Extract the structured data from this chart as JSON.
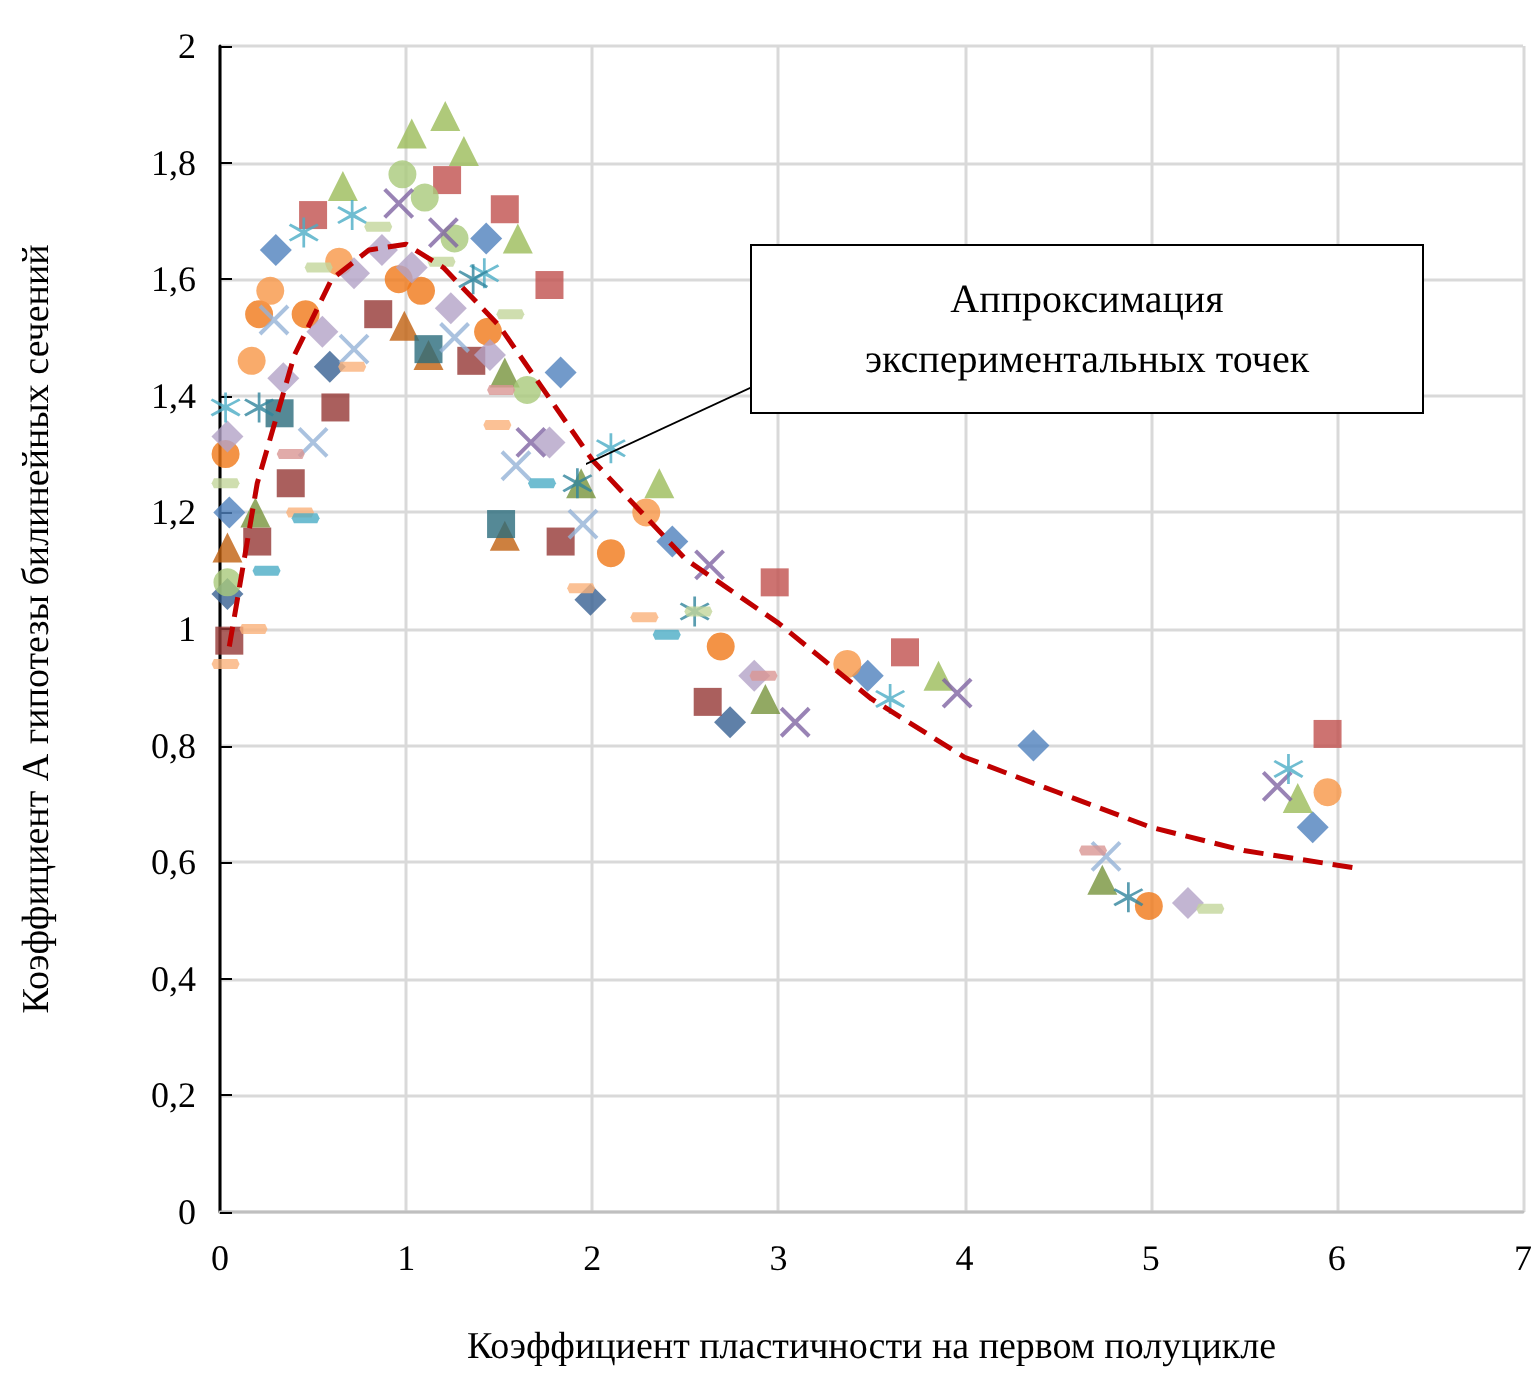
{
  "chart_data": {
    "type": "scatter",
    "xlabel": "Коэффициент пластичности на первом полуцикле",
    "ylabel": "Коэффициент А гипотезы билинейных сечений",
    "xlim": [
      0,
      7
    ],
    "xticks": [
      0,
      1,
      2,
      3,
      4,
      5,
      6,
      7
    ],
    "ylim": [
      0,
      2
    ],
    "yticks": [
      0,
      {
        "value": 0.2,
        "label": "0,2"
      },
      {
        "value": 0.4,
        "label": "0,4"
      },
      {
        "value": 0.6,
        "label": "0,6"
      },
      {
        "value": 0.8,
        "label": "0,8"
      },
      1,
      {
        "value": 1.2,
        "label": "1,2"
      },
      {
        "value": 1.4,
        "label": "1,4"
      },
      {
        "value": 1.6,
        "label": "1,6"
      },
      {
        "value": 1.8,
        "label": "1,8"
      },
      2
    ],
    "grid": true,
    "annotations": [
      "Аппроксимация экспериментальных точек"
    ],
    "series": [
      {
        "color": "#4f81bd",
        "marker": "diamond",
        "x": [
          0.05,
          0.3,
          1.43,
          1.83,
          2.43,
          3.48,
          4.37,
          5.87
        ],
        "values": [
          1.2,
          1.65,
          1.67,
          1.44,
          1.15,
          0.92,
          0.8,
          0.66
        ]
      },
      {
        "color": "#376092",
        "marker": "diamond",
        "x": [
          0.04,
          0.59,
          1.99,
          2.74
        ],
        "values": [
          1.06,
          1.45,
          1.05,
          0.84
        ]
      },
      {
        "color": "#f07818",
        "marker": "circle",
        "x": [
          0.03,
          0.21,
          0.46,
          0.96,
          1.08,
          1.44,
          2.1,
          2.69,
          4.99
        ],
        "values": [
          1.3,
          1.54,
          1.54,
          1.6,
          1.58,
          1.51,
          1.13,
          0.97,
          0.525
        ]
      },
      {
        "color": "#f79646",
        "marker": "circle",
        "x": [
          0.17,
          0.27,
          0.64,
          2.29,
          3.37,
          5.95
        ],
        "values": [
          1.46,
          1.58,
          1.63,
          1.2,
          0.94,
          0.72
        ]
      },
      {
        "color": "#c0504d",
        "marker": "square",
        "x": [
          0.5,
          1.22,
          1.53,
          1.77,
          2.98,
          3.68,
          5.95
        ],
        "values": [
          1.71,
          1.77,
          1.72,
          1.59,
          1.08,
          0.96,
          0.82
        ]
      },
      {
        "color": "#953735",
        "marker": "square",
        "x": [
          0.05,
          0.2,
          0.38,
          0.62,
          0.85,
          1.35,
          1.83,
          2.62
        ],
        "values": [
          0.98,
          1.15,
          1.25,
          1.38,
          1.54,
          1.46,
          1.15,
          0.875
        ]
      },
      {
        "color": "#9bbb59",
        "marker": "triangle",
        "x": [
          0.66,
          1.03,
          1.21,
          1.31,
          1.6,
          2.36,
          3.86,
          5.79
        ],
        "values": [
          1.76,
          1.85,
          1.88,
          1.82,
          1.67,
          1.25,
          0.92,
          0.71
        ]
      },
      {
        "color": "#77933c",
        "marker": "triangle",
        "x": [
          0.19,
          1.53,
          1.94,
          2.93,
          4.74
        ],
        "values": [
          1.2,
          1.44,
          1.25,
          0.88,
          0.57
        ]
      },
      {
        "color": "#c0600f",
        "marker": "triangle",
        "x": [
          0.04,
          0.99,
          1.12,
          1.53
        ],
        "values": [
          1.14,
          1.52,
          1.47,
          1.16
        ]
      },
      {
        "color": "#2a6b7c",
        "marker": "square",
        "x": [
          0.32,
          1.12,
          1.51
        ],
        "values": [
          1.37,
          1.48,
          1.18
        ]
      },
      {
        "color": "#a9c97a",
        "marker": "circle",
        "x": [
          0.04,
          0.98,
          1.1,
          1.26,
          1.65
        ],
        "values": [
          1.08,
          1.78,
          1.74,
          1.67,
          1.41
        ]
      },
      {
        "color": "#b3a2c7",
        "marker": "diamond",
        "x": [
          0.04,
          0.34,
          0.55,
          0.72,
          0.87,
          1.03,
          1.24,
          1.45,
          1.77,
          2.87,
          5.2
        ],
        "values": [
          1.33,
          1.43,
          1.51,
          1.61,
          1.65,
          1.62,
          1.55,
          1.47,
          1.32,
          0.92,
          0.53
        ]
      },
      {
        "color": "#8064a2",
        "marker": "cross",
        "x": [
          0.96,
          1.2,
          1.67,
          2.63,
          3.09,
          3.96,
          5.68
        ],
        "values": [
          1.73,
          1.68,
          1.32,
          1.11,
          0.84,
          0.89,
          0.73
        ]
      },
      {
        "color": "#4bacc6",
        "marker": "star",
        "x": [
          0.03,
          0.45,
          0.71,
          1.42,
          2.1,
          3.6,
          5.74
        ],
        "values": [
          1.38,
          1.68,
          1.71,
          1.61,
          1.31,
          0.88,
          0.76
        ]
      },
      {
        "color": "#31859c",
        "marker": "star",
        "x": [
          0.21,
          1.36,
          1.92,
          2.55,
          4.88
        ],
        "values": [
          1.38,
          1.6,
          1.25,
          1.03,
          0.54
        ]
      },
      {
        "color": "#95b3d7",
        "marker": "cross",
        "x": [
          0.29,
          0.5,
          0.72,
          1.26,
          1.59,
          1.95,
          4.76
        ],
        "values": [
          1.53,
          1.32,
          1.48,
          1.5,
          1.28,
          1.18,
          0.61
        ]
      },
      {
        "color": "#fab27a",
        "x": [
          0.03,
          0.18,
          0.43,
          0.71,
          1.49,
          1.94,
          2.28
        ],
        "values": [
          0.94,
          1.0,
          1.2,
          1.45,
          1.35,
          1.07,
          1.02
        ]
      },
      {
        "color": "#c3d69b",
        "x": [
          0.03,
          0.53,
          0.85,
          1.19,
          1.56,
          2.57,
          5.32
        ],
        "values": [
          1.25,
          1.62,
          1.69,
          1.63,
          1.54,
          1.03,
          0.52
        ]
      },
      {
        "color": "#4bacc6",
        "x": [
          0.25,
          0.46,
          1.73,
          2.4
        ],
        "values": [
          1.1,
          1.19,
          1.25,
          0.99
        ]
      },
      {
        "color": "#d99694",
        "x": [
          0.38,
          1.51,
          2.92,
          4.69
        ],
        "values": [
          1.3,
          1.41,
          0.92,
          0.62
        ]
      },
      {
        "type": "line",
        "color": "#c00000",
        "marker": "none",
        "line_style": "dashed",
        "x": [
          0.05,
          0.2,
          0.4,
          0.6,
          0.8,
          1.0,
          1.2,
          1.5,
          2,
          2.5,
          3,
          3.5,
          4,
          4.5,
          5,
          5.5,
          6.1
        ],
        "values": [
          0.97,
          1.25,
          1.47,
          1.6,
          1.65,
          1.66,
          1.62,
          1.52,
          1.29,
          1.12,
          1.01,
          0.88,
          0.78,
          0.72,
          0.66,
          0.62,
          0.59
        ]
      }
    ]
  }
}
